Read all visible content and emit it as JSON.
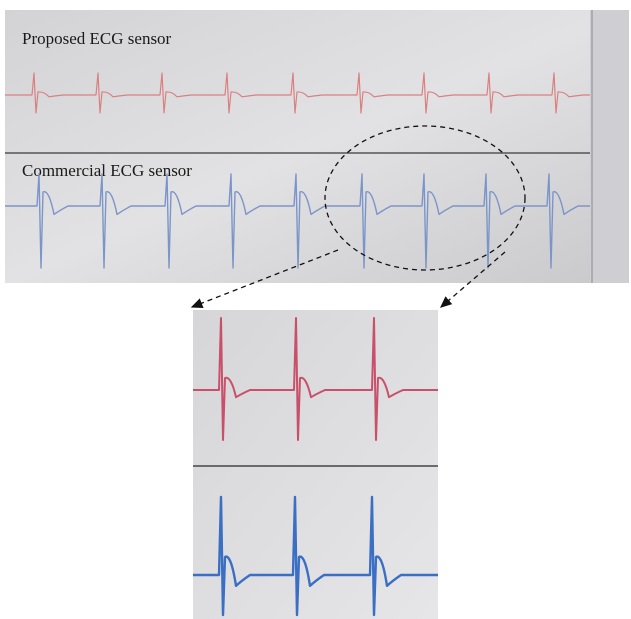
{
  "top_panel": {
    "proposed_label": "Proposed ECG sensor",
    "commercial_label": "Commercial ECG sensor"
  }
}
